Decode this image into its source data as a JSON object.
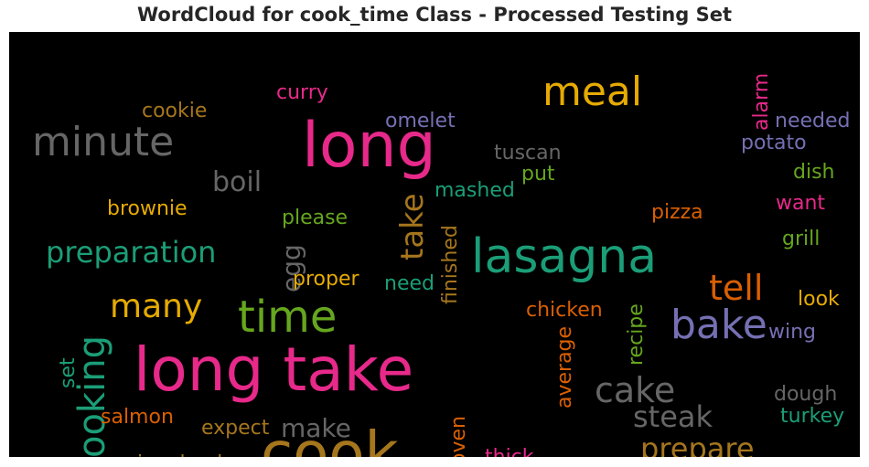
{
  "chart_data": {
    "type": "wordcloud",
    "title": "WordCloud for cook_time Class - Processed Testing Set",
    "background": "#000000",
    "words": [
      {
        "text": "long take",
        "color": "#e7298a",
        "orientation": "horizontal"
      },
      {
        "text": "long",
        "color": "#e7298a",
        "orientation": "horizontal"
      },
      {
        "text": "cook",
        "color": "#a6761d",
        "orientation": "horizontal"
      },
      {
        "text": "lasagna",
        "color": "#1b9e77",
        "orientation": "horizontal"
      },
      {
        "text": "time",
        "color": "#66a61e",
        "orientation": "horizontal"
      },
      {
        "text": "minute",
        "color": "#666666",
        "orientation": "horizontal"
      },
      {
        "text": "meal",
        "color": "#e6ab02",
        "orientation": "horizontal"
      },
      {
        "text": "bake",
        "color": "#7570b3",
        "orientation": "horizontal"
      },
      {
        "text": "cooking",
        "color": "#1b9e77",
        "orientation": "vertical"
      },
      {
        "text": "cake",
        "color": "#666666",
        "orientation": "horizontal"
      },
      {
        "text": "tell",
        "color": "#d95f02",
        "orientation": "horizontal"
      },
      {
        "text": "many",
        "color": "#e6ab02",
        "orientation": "horizontal"
      },
      {
        "text": "preparation",
        "color": "#1b9e77",
        "orientation": "horizontal"
      },
      {
        "text": "take",
        "color": "#a6761d",
        "orientation": "vertical"
      },
      {
        "text": "prepare",
        "color": "#a6761d",
        "orientation": "horizontal"
      },
      {
        "text": "steak",
        "color": "#666666",
        "orientation": "horizontal"
      },
      {
        "text": "boil",
        "color": "#666666",
        "orientation": "horizontal"
      },
      {
        "text": "make",
        "color": "#666666",
        "orientation": "horizontal"
      },
      {
        "text": "egg",
        "color": "#666666",
        "orientation": "vertical"
      },
      {
        "text": "tuscan",
        "color": "#666666",
        "orientation": "horizontal"
      },
      {
        "text": "omelet",
        "color": "#7570b3",
        "orientation": "horizontal"
      },
      {
        "text": "mashed",
        "color": "#1b9e77",
        "orientation": "horizontal"
      },
      {
        "text": "potato",
        "color": "#7570b3",
        "orientation": "horizontal"
      },
      {
        "text": "needed",
        "color": "#7570b3",
        "orientation": "horizontal"
      },
      {
        "text": "curry",
        "color": "#e7298a",
        "orientation": "horizontal"
      },
      {
        "text": "cookie",
        "color": "#a6761d",
        "orientation": "horizontal"
      },
      {
        "text": "brownie",
        "color": "#e6ab02",
        "orientation": "horizontal"
      },
      {
        "text": "please",
        "color": "#66a61e",
        "orientation": "horizontal"
      },
      {
        "text": "put",
        "color": "#66a61e",
        "orientation": "horizontal"
      },
      {
        "text": "dish",
        "color": "#66a61e",
        "orientation": "horizontal"
      },
      {
        "text": "alarm",
        "color": "#e7298a",
        "orientation": "vertical"
      },
      {
        "text": "want",
        "color": "#e7298a",
        "orientation": "horizontal"
      },
      {
        "text": "pizza",
        "color": "#d95f02",
        "orientation": "horizontal"
      },
      {
        "text": "grill",
        "color": "#66a61e",
        "orientation": "horizontal"
      },
      {
        "text": "look",
        "color": "#e6ab02",
        "orientation": "horizontal"
      },
      {
        "text": "wing",
        "color": "#7570b3",
        "orientation": "horizontal"
      },
      {
        "text": "proper",
        "color": "#e6ab02",
        "orientation": "horizontal"
      },
      {
        "text": "need",
        "color": "#1b9e77",
        "orientation": "horizontal"
      },
      {
        "text": "finished",
        "color": "#a6761d",
        "orientation": "vertical"
      },
      {
        "text": "chicken",
        "color": "#d95f02",
        "orientation": "horizontal"
      },
      {
        "text": "recipe",
        "color": "#66a61e",
        "orientation": "vertical"
      },
      {
        "text": "average",
        "color": "#d95f02",
        "orientation": "vertical"
      },
      {
        "text": "set",
        "color": "#1b9e77",
        "orientation": "vertical"
      },
      {
        "text": "salmon",
        "color": "#d95f02",
        "orientation": "horizontal"
      },
      {
        "text": "expect",
        "color": "#a6761d",
        "orientation": "horizontal"
      },
      {
        "text": "involved",
        "color": "#a6761d",
        "orientation": "horizontal"
      },
      {
        "text": "oven",
        "color": "#d95f02",
        "orientation": "vertical"
      },
      {
        "text": "thick",
        "color": "#e7298a",
        "orientation": "horizontal"
      },
      {
        "text": "dough",
        "color": "#666666",
        "orientation": "horizontal"
      },
      {
        "text": "turkey",
        "color": "#1b9e77",
        "orientation": "horizontal"
      }
    ]
  }
}
